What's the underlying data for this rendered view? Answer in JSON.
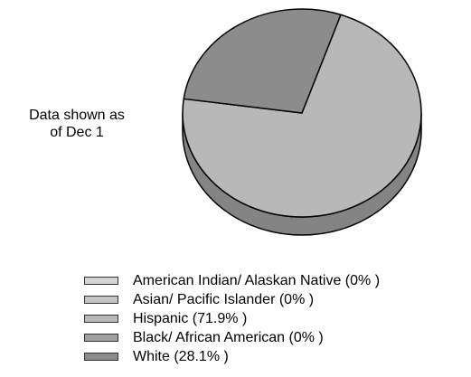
{
  "note": {
    "line1": "Data shown as",
    "line2": "of Dec 1"
  },
  "chart_data": {
    "type": "pie",
    "title": "",
    "labels": [
      "American Indian/ Alaskan Native",
      "Asian/ Pacific Islander",
      "Hispanic",
      "Black/ African American",
      "White"
    ],
    "values": [
      0,
      0,
      71.9,
      0,
      28.1
    ],
    "legend_labels": [
      "American Indian/ Alaskan Native (0% )",
      "Asian/ Pacific Islander (0% )",
      "Hispanic (71.9% )",
      "Black/ African American (0% )",
      "White (28.1% )"
    ],
    "colors": [
      "#d4d4d4",
      "#c4c4c4",
      "#b8b8b8",
      "#a0a0a0",
      "#8c8c8c"
    ],
    "style": "3d",
    "legend_position": "bottom"
  }
}
